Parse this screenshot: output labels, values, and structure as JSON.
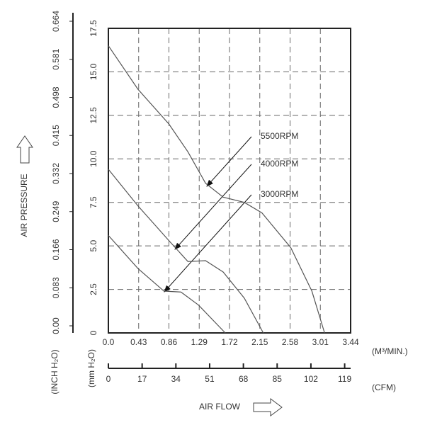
{
  "chart_data": {
    "type": "line",
    "x_label": "AIR FLOW",
    "y_label": "AIR PRESSURE",
    "x_unit": "(M³/MIN.)",
    "y_unit": "(mm H₂O)",
    "y2_unit": "(INCH H₂O)",
    "x2_unit": "(CFM)",
    "xlim": [
      0,
      3.44
    ],
    "xticks": [
      {
        "value": 0,
        "label": "0.0"
      },
      0.43,
      0.86,
      1.29,
      1.72,
      2.15,
      2.58,
      3.01,
      3.44
    ],
    "ylim": [
      0,
      17.5
    ],
    "yticks": [
      0,
      2.5,
      {
        "value": 5,
        "label": "5.0"
      },
      7.5,
      {
        "value": 10,
        "label": "10.0"
      },
      12.5,
      {
        "value": 15,
        "label": "15.0"
      },
      17.5
    ],
    "y2lim": [
      0,
      0.664
    ],
    "y2ticks": [
      {
        "value": 0,
        "label": "0.00"
      },
      0.083,
      0.166,
      0.249,
      0.332,
      0.415,
      0.498,
      0.581,
      0.664
    ],
    "x2lim": [
      0,
      122
    ],
    "x2ticks": [
      0,
      17,
      34,
      51,
      68,
      85,
      102,
      119
    ],
    "grid": true,
    "series": [
      {
        "name": "5500RPM",
        "color": "#555555",
        "x": [
          0,
          0.42,
          0.86,
          1.13,
          1.38,
          1.63,
          1.93,
          2.18,
          2.59,
          2.89,
          3.07
        ],
        "values": [
          16.5,
          14.0,
          12.0,
          10.4,
          8.6,
          7.8,
          7.5,
          6.9,
          4.9,
          2.4,
          0
        ]
      },
      {
        "name": "4000RPM",
        "color": "#555555",
        "x": [
          0,
          0.42,
          0.86,
          1.13,
          1.38,
          1.63,
          1.93,
          2.2
        ],
        "values": [
          9.4,
          7.3,
          5.3,
          4.1,
          4.15,
          3.5,
          2.0,
          0
        ]
      },
      {
        "name": "3000RPM",
        "color": "#555555",
        "x": [
          0,
          0.42,
          0.79,
          1.03,
          1.28,
          1.66
        ],
        "values": [
          5.6,
          3.7,
          2.4,
          2.35,
          1.6,
          0
        ]
      }
    ]
  }
}
